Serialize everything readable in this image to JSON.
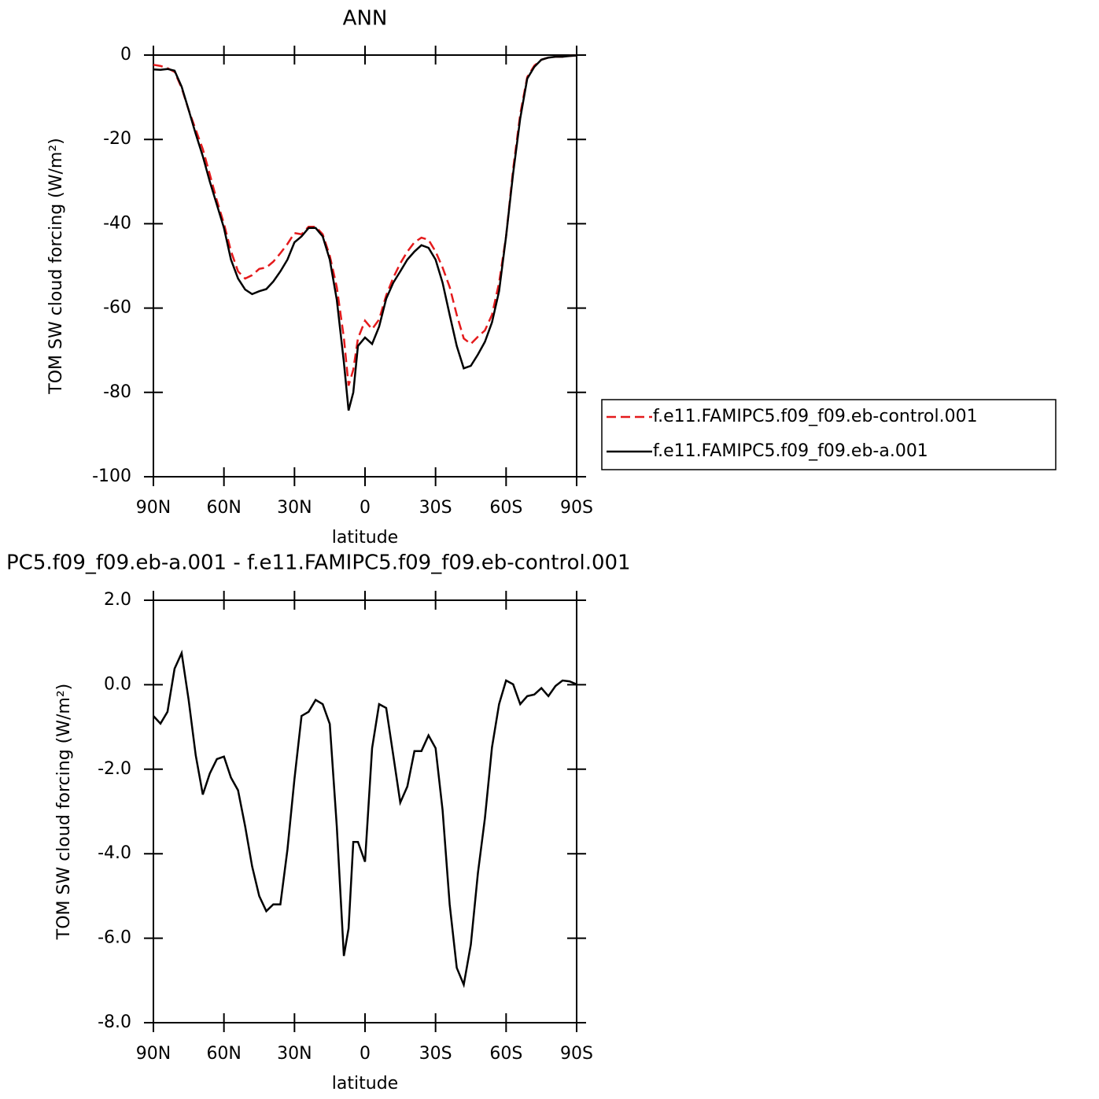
{
  "chart_data": [
    {
      "type": "line",
      "title": "ANN",
      "xlabel": "latitude",
      "ylabel": "TOM SW cloud forcing (W/m²)",
      "x": [
        90,
        87,
        84,
        81,
        78,
        75,
        72,
        69,
        66,
        63,
        60,
        57,
        54,
        51,
        48,
        45,
        42,
        39,
        36,
        33,
        30,
        27,
        24,
        21,
        18,
        15,
        12,
        9,
        7,
        5,
        3,
        0,
        -3,
        -6,
        -9,
        -12,
        -15,
        -18,
        -21,
        -24,
        -27,
        -30,
        -33,
        -36,
        -39,
        -42,
        -45,
        -48,
        -51,
        -54,
        -57,
        -60,
        -63,
        -66,
        -69,
        -72,
        -75,
        -78,
        -81,
        -84,
        -87,
        -90
      ],
      "xlim": [
        90,
        -90
      ],
      "xticks": [
        {
          "value": 90,
          "label": "90N"
        },
        {
          "value": 60,
          "label": "60N"
        },
        {
          "value": 30,
          "label": "30N"
        },
        0,
        {
          "value": -30,
          "label": "30S"
        },
        {
          "value": -60,
          "label": "60S"
        },
        {
          "value": -90,
          "label": "90S"
        }
      ],
      "ylim": [
        -100,
        0
      ],
      "yticks": [
        0,
        -20,
        -40,
        -60,
        -80,
        -100
      ],
      "legend": "right",
      "series": [
        {
          "name": "f.e11.FAMIPC5.f09_f09.eb-control.001",
          "color": "#e41a1c",
          "dash": "dashed",
          "values": [
            -2.3,
            -2.6,
            -3.1,
            -4,
            -7.8,
            -13,
            -17.7,
            -22.3,
            -28.3,
            -34.5,
            -40,
            -46.5,
            -51.3,
            -53,
            -52.2,
            -50.7,
            -50.4,
            -49,
            -47,
            -44.8,
            -42.2,
            -42.5,
            -40.7,
            -40.7,
            -42.5,
            -47.6,
            -55,
            -67,
            -78.4,
            -74.6,
            -67.2,
            -63,
            -65,
            -62.7,
            -57,
            -52.8,
            -49.4,
            -46.6,
            -44.4,
            -43.3,
            -43.8,
            -46.6,
            -50.4,
            -55,
            -61.6,
            -67.2,
            -68.5,
            -66.8,
            -65.3,
            -61.6,
            -54,
            -43,
            -27,
            -14,
            -5.2,
            -2.5,
            -1.1,
            -0.6,
            -0.4,
            -0.4,
            -0.2,
            -0.1
          ]
        },
        {
          "name": "f.e11.FAMIPC5.f09_f09.eb-a.001",
          "color": "#000000",
          "dash": "solid",
          "values": [
            -3.4,
            -3.5,
            -3.3,
            -3.7,
            -7.5,
            -13,
            -18.7,
            -24,
            -30,
            -35.5,
            -41,
            -48.5,
            -53,
            -55.6,
            -56.7,
            -56,
            -55.5,
            -53.7,
            -51.3,
            -48.5,
            -44.4,
            -43,
            -41,
            -41,
            -43,
            -48.5,
            -58,
            -72.8,
            -84.3,
            -80,
            -69,
            -67,
            -68.5,
            -64.4,
            -57.8,
            -54,
            -51.3,
            -48.5,
            -46.6,
            -45.1,
            -45.7,
            -48.5,
            -54,
            -61.6,
            -69,
            -74.3,
            -73.7,
            -71,
            -68,
            -63.4,
            -56,
            -43,
            -28,
            -15,
            -5.6,
            -2.8,
            -1.1,
            -0.6,
            -0.4,
            -0.4,
            -0.2,
            -0.1
          ]
        }
      ]
    },
    {
      "type": "line",
      "title": "PC5.f09_f09.eb-a.001 - f.e11.FAMIPC5.f09_f09.eb-control.001",
      "xlabel": "latitude",
      "ylabel": "TOM SW cloud forcing (W/m²)",
      "x": [
        90,
        87,
        84,
        81,
        78,
        75,
        72,
        69,
        66,
        63,
        60,
        57,
        54,
        51,
        48,
        45,
        42,
        39,
        36,
        33,
        30,
        27,
        24,
        21,
        18,
        15,
        12,
        9,
        7,
        5,
        3,
        0,
        -3,
        -6,
        -9,
        -12,
        -15,
        -18,
        -21,
        -24,
        -27,
        -30,
        -33,
        -36,
        -39,
        -42,
        -45,
        -48,
        -51,
        -54,
        -57,
        -60,
        -63,
        -66,
        -69,
        -72,
        -75,
        -78,
        -81,
        -84,
        -87,
        -90
      ],
      "xlim": [
        90,
        -90
      ],
      "xticks": [
        {
          "value": 90,
          "label": "90N"
        },
        {
          "value": 60,
          "label": "60N"
        },
        {
          "value": 30,
          "label": "30N"
        },
        0,
        {
          "value": -30,
          "label": "30S"
        },
        {
          "value": -60,
          "label": "60S"
        },
        {
          "value": -90,
          "label": "90S"
        }
      ],
      "ylim": [
        -8,
        2
      ],
      "yticks": [
        {
          "value": 2,
          "label": "2.0"
        },
        {
          "value": 0,
          "label": "0.0"
        },
        {
          "value": -2,
          "label": "-2.0"
        },
        {
          "value": -4,
          "label": "-4.0"
        },
        {
          "value": -6,
          "label": "-6.0"
        },
        {
          "value": -8,
          "label": "-8.0"
        }
      ],
      "series": [
        {
          "color": "#000000",
          "dash": "solid",
          "values": [
            -0.74,
            -0.92,
            -0.64,
            0.38,
            0.75,
            -0.36,
            -1.67,
            -2.6,
            -2.1,
            -1.76,
            -1.7,
            -2.2,
            -2.5,
            -3.35,
            -4.3,
            -5,
            -5.36,
            -5.2,
            -5.2,
            -3.9,
            -2.23,
            -0.74,
            -0.64,
            -0.36,
            -0.46,
            -0.93,
            -3.35,
            -6.42,
            -5.77,
            -3.72,
            -3.72,
            -4.19,
            -1.5,
            -0.46,
            -0.55,
            -1.67,
            -2.79,
            -2.41,
            -1.57,
            -1.57,
            -1.2,
            -1.5,
            -2.97,
            -5.2,
            -6.7,
            -7.1,
            -6.15,
            -4.46,
            -3.16,
            -1.48,
            -0.46,
            0.1,
            0.01,
            -0.46,
            -0.27,
            -0.23,
            -0.08,
            -0.27,
            -0.03,
            0.1,
            0.08,
            0.01
          ]
        }
      ]
    }
  ]
}
